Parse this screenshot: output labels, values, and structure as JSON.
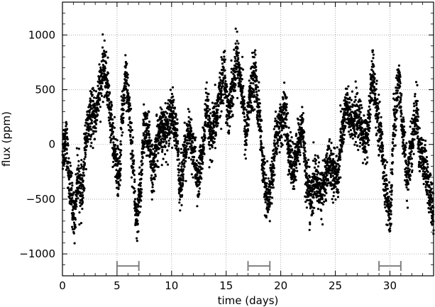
{
  "chart_data": {
    "type": "scatter",
    "xlabel": "time (days)",
    "ylabel": "flux (ppm)",
    "xlim": [
      0,
      34
    ],
    "ylim": [
      -1200,
      1300
    ],
    "grid": true,
    "grid_style": "dotted",
    "marker_color": "#000000",
    "bracket_color": "#808080",
    "xticks": [
      0,
      5,
      10,
      15,
      20,
      25,
      30
    ],
    "xtick_labels": [
      "0",
      "5",
      "10",
      "15",
      "20",
      "25",
      "30"
    ],
    "yticks": [
      -1000,
      -500,
      0,
      500,
      1000
    ],
    "ytick_labels": [
      "−1000",
      "−500",
      "0",
      "500",
      "1000"
    ],
    "anchor_points": {
      "t": [
        0,
        0.3,
        0.7,
        1.1,
        1.4,
        1.8,
        2.2,
        2.6,
        3.0,
        3.4,
        3.8,
        4.1,
        4.4,
        4.8,
        5.2,
        5.5,
        5.8,
        6.1,
        6.4,
        6.8,
        7.1,
        7.5,
        7.9,
        8.3,
        8.7,
        9.1,
        9.5,
        10.0,
        10.4,
        10.8,
        11.2,
        11.6,
        12.0,
        12.4,
        12.8,
        13.2,
        13.6,
        14.0,
        14.4,
        14.8,
        15.2,
        15.6,
        16.0,
        16.4,
        16.8,
        17.2,
        17.6,
        18.0,
        18.4,
        18.8,
        19.2,
        19.6,
        20.0,
        20.4,
        20.8,
        21.2,
        21.6,
        22.0,
        22.4,
        22.8,
        23.2,
        23.6,
        24.0,
        24.4,
        24.8,
        25.2,
        25.6,
        26.0,
        26.4,
        26.8,
        27.2,
        27.6,
        28.0,
        28.4,
        28.8,
        29.2,
        29.6,
        30.0,
        30.4,
        30.8,
        31.2,
        31.6,
        32.0,
        32.4,
        32.8,
        33.2,
        33.6,
        34.0
      ],
      "flux": [
        -50,
        50,
        -400,
        -650,
        -300,
        -450,
        100,
        250,
        250,
        500,
        700,
        550,
        250,
        -100,
        -300,
        300,
        650,
        350,
        -100,
        -750,
        -450,
        150,
        50,
        -250,
        50,
        100,
        150,
        300,
        100,
        -350,
        -100,
        100,
        -50,
        -350,
        -100,
        300,
        50,
        200,
        450,
        650,
        300,
        550,
        800,
        550,
        100,
        450,
        650,
        300,
        -250,
        -550,
        -300,
        100,
        200,
        300,
        -100,
        -250,
        0,
        150,
        -350,
        -500,
        -300,
        -450,
        -350,
        -150,
        -250,
        -300,
        100,
        350,
        200,
        250,
        200,
        50,
        100,
        650,
        300,
        50,
        -400,
        -650,
        200,
        600,
        100,
        -300,
        0,
        300,
        -100,
        -200,
        -450,
        -600
      ]
    },
    "points_per_day": 150,
    "scatter_sigma": 110,
    "brackets": [
      {
        "x0": 5.0,
        "x1": 7.0,
        "y": -1110
      },
      {
        "x0": 17.0,
        "x1": 19.0,
        "y": -1110
      },
      {
        "x0": 29.0,
        "x1": 31.0,
        "y": -1110
      }
    ]
  }
}
